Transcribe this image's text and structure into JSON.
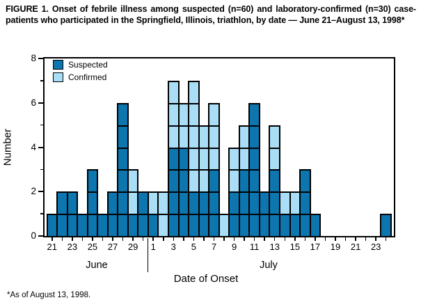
{
  "figure": {
    "title": "FIGURE 1. Onset of febrile illness among suspected (n=60) and laboratory-confirmed (n=30) case-patients who participated in the Springfield, Illinois, triathlon, by date — June 21–August 13, 1998*",
    "footnote": "*As of August 13, 1998."
  },
  "chart_data": {
    "type": "bar",
    "stacked": true,
    "unit_cells": true,
    "title": "Onset of febrile illness among suspected and laboratory-confirmed case-patients",
    "xlabel": "Date of Onset",
    "ylabel": "Number",
    "ylim": [
      0,
      8
    ],
    "yticks_major": [
      0,
      2,
      4,
      6,
      8
    ],
    "yticks_minor": [
      1,
      3,
      5,
      7
    ],
    "grid": false,
    "legend_position": "top-left-inside",
    "x_months": [
      {
        "name": "June",
        "num_days_shown": 10
      },
      {
        "name": "July",
        "num_days_shown": 24
      }
    ],
    "series": [
      {
        "name": "Suspected",
        "key": "S",
        "color": "#0d76af",
        "total": 60
      },
      {
        "name": "Confirmed",
        "key": "C",
        "color": "#aadef6",
        "total": 30
      }
    ],
    "border_color": "#000000",
    "days": [
      {
        "month": "June",
        "day": 21,
        "tick_label": "21",
        "stack": "S"
      },
      {
        "month": "June",
        "day": 22,
        "tick_label": "",
        "stack": "SS"
      },
      {
        "month": "June",
        "day": 23,
        "tick_label": "23",
        "stack": "SS"
      },
      {
        "month": "June",
        "day": 24,
        "tick_label": "",
        "stack": "S"
      },
      {
        "month": "June",
        "day": 25,
        "tick_label": "25",
        "stack": "SSS"
      },
      {
        "month": "June",
        "day": 26,
        "tick_label": "",
        "stack": "S"
      },
      {
        "month": "June",
        "day": 27,
        "tick_label": "27",
        "stack": "SS"
      },
      {
        "month": "June",
        "day": 28,
        "tick_label": "",
        "stack": "SSSSSS"
      },
      {
        "month": "June",
        "day": 29,
        "tick_label": "29",
        "stack": "SCC"
      },
      {
        "month": "June",
        "day": 30,
        "tick_label": "",
        "stack": "SS"
      },
      {
        "month": "July",
        "day": 1,
        "tick_label": "1",
        "stack": "SC"
      },
      {
        "month": "July",
        "day": 2,
        "tick_label": "",
        "stack": "CC"
      },
      {
        "month": "July",
        "day": 3,
        "tick_label": "3",
        "stack": "SSSSCCC"
      },
      {
        "month": "July",
        "day": 4,
        "tick_label": "",
        "stack": "SSSSCC"
      },
      {
        "month": "July",
        "day": 5,
        "tick_label": "5",
        "stack": "SSCCCCC"
      },
      {
        "month": "July",
        "day": 6,
        "tick_label": "",
        "stack": "SSCCC"
      },
      {
        "month": "July",
        "day": 7,
        "tick_label": "7",
        "stack": "SSSCCC"
      },
      {
        "month": "July",
        "day": 8,
        "tick_label": "",
        "stack": "C"
      },
      {
        "month": "July",
        "day": 9,
        "tick_label": "9",
        "stack": "SSCC"
      },
      {
        "month": "July",
        "day": 10,
        "tick_label": "",
        "stack": "SSSCC"
      },
      {
        "month": "July",
        "day": 11,
        "tick_label": "11",
        "stack": "SSSSSS"
      },
      {
        "month": "July",
        "day": 12,
        "tick_label": "",
        "stack": "SS"
      },
      {
        "month": "July",
        "day": 13,
        "tick_label": "13",
        "stack": "SSSCC"
      },
      {
        "month": "July",
        "day": 14,
        "tick_label": "",
        "stack": "SC"
      },
      {
        "month": "July",
        "day": 15,
        "tick_label": "15",
        "stack": "SC"
      },
      {
        "month": "July",
        "day": 16,
        "tick_label": "",
        "stack": "SSS"
      },
      {
        "month": "July",
        "day": 17,
        "tick_label": "17",
        "stack": "S"
      },
      {
        "month": "July",
        "day": 18,
        "tick_label": "",
        "stack": ""
      },
      {
        "month": "July",
        "day": 19,
        "tick_label": "19",
        "stack": ""
      },
      {
        "month": "July",
        "day": 20,
        "tick_label": "",
        "stack": ""
      },
      {
        "month": "July",
        "day": 21,
        "tick_label": "21",
        "stack": ""
      },
      {
        "month": "July",
        "day": 22,
        "tick_label": "",
        "stack": ""
      },
      {
        "month": "July",
        "day": 23,
        "tick_label": "23",
        "stack": ""
      },
      {
        "month": "July",
        "day": 24,
        "tick_label": "",
        "stack": "S"
      }
    ],
    "totals": {
      "suspected": 60,
      "confirmed": 30,
      "all_cases": 90
    }
  }
}
